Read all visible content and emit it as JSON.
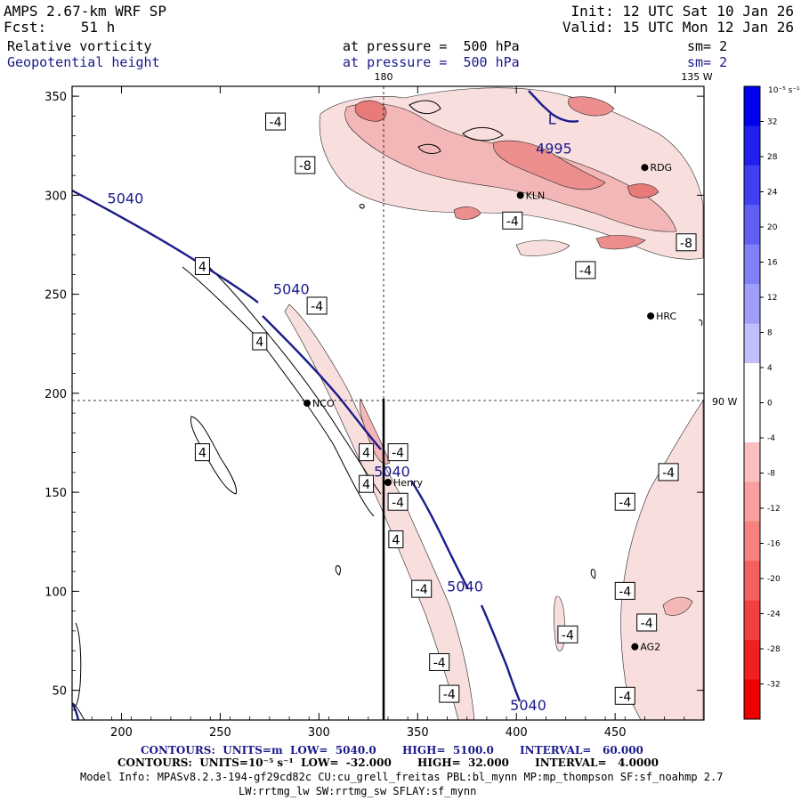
{
  "header": {
    "model": "AMPS 2.67-km WRF SP",
    "forecast": "Fcst:    51 h",
    "init": "Init: 12 UTC Sat 10 Jan 26",
    "valid": "Valid: 15 UTC Mon 12 Jan 26",
    "field1": {
      "name": "Relative vorticity",
      "pressure": "at pressure =  500 hPa",
      "smooth": "sm= 2"
    },
    "field2": {
      "name": "Geopotential height",
      "pressure": "at pressure =  500 hPa",
      "smooth": "sm= 2"
    }
  },
  "map": {
    "lon_labels": {
      "top_180": "180",
      "top_135w": "135 W",
      "right_90w": "90 W"
    },
    "stations": [
      {
        "id": "RDG",
        "x": 465,
        "y": 314
      },
      {
        "id": "KLN",
        "x": 402,
        "y": 300
      },
      {
        "id": "HRC",
        "x": 468,
        "y": 239
      },
      {
        "id": "NCO",
        "x": 294,
        "y": 195
      },
      {
        "id": "Henry",
        "x": 335,
        "y": 155
      },
      {
        "id": "AG2",
        "x": 460,
        "y": 72
      }
    ],
    "height_labels": [
      {
        "text": "5040",
        "x": 202,
        "y": 296
      },
      {
        "text": "5040",
        "x": 286,
        "y": 250
      },
      {
        "text": "5040",
        "x": 337,
        "y": 158
      },
      {
        "text": "5040",
        "x": 374,
        "y": 100
      },
      {
        "text": "5040",
        "x": 406,
        "y": 40
      },
      {
        "text": "4995",
        "x": 419,
        "y": 321
      }
    ],
    "low_marker": {
      "text": "L",
      "x": 418,
      "y": 336
    },
    "vort_labels": [
      {
        "text": "-4",
        "x": 278,
        "y": 337
      },
      {
        "text": "-8",
        "x": 293,
        "y": 315
      },
      {
        "text": "-4",
        "x": 398,
        "y": 287
      },
      {
        "text": "-8",
        "x": 486,
        "y": 276
      },
      {
        "text": "-4",
        "x": 435,
        "y": 262
      },
      {
        "text": "4",
        "x": 241,
        "y": 264
      },
      {
        "text": "-4",
        "x": 299,
        "y": 244
      },
      {
        "text": "4",
        "x": 270,
        "y": 226
      },
      {
        "text": "4",
        "x": 241,
        "y": 170
      },
      {
        "text": "4",
        "x": 324,
        "y": 170
      },
      {
        "text": "-4",
        "x": 340,
        "y": 170
      },
      {
        "text": "4",
        "x": 324,
        "y": 154
      },
      {
        "text": "-4",
        "x": 340,
        "y": 145
      },
      {
        "text": "4",
        "x": 339,
        "y": 126
      },
      {
        "text": "-4",
        "x": 352,
        "y": 101
      },
      {
        "text": "-4",
        "x": 361,
        "y": 64
      },
      {
        "text": "-4",
        "x": 366,
        "y": 48
      },
      {
        "text": "-4",
        "x": 426,
        "y": 78
      },
      {
        "text": "-4",
        "x": 455,
        "y": 100
      },
      {
        "text": "-4",
        "x": 466,
        "y": 84
      },
      {
        "text": "-4",
        "x": 455,
        "y": 47
      },
      {
        "text": "-4",
        "x": 455,
        "y": 145
      },
      {
        "text": "-4",
        "x": 477,
        "y": 160
      }
    ]
  },
  "axes": {
    "xlim": [
      175,
      495
    ],
    "ylim": [
      35,
      355
    ],
    "x_ticks": [
      "200",
      "250",
      "300",
      "350",
      "400",
      "450"
    ],
    "y_ticks": [
      "350",
      "300",
      "250",
      "200",
      "150",
      "100",
      "50"
    ]
  },
  "colorbar": {
    "unit": "10⁻⁵ s⁻¹",
    "ticks": [
      "32",
      "28",
      "24",
      "20",
      "16",
      "12",
      "8",
      "4",
      "0",
      "-4",
      "-8",
      "-12",
      "-16",
      "-20",
      "-24",
      "-28",
      "-32"
    ],
    "top_color": "#0000ee",
    "bottom_color": "#ee0000"
  },
  "footer": {
    "line1": "CONTOURS:  UNITS=m  LOW=  5040.0       HIGH=  5100.0       INTERVAL=   60.000",
    "line2": "CONTOURS:  UNITS=10⁻⁵ s⁻¹  LOW=  -32.000       HIGH=  32.000       INTERVAL=   4.0000",
    "info1": "Model Info: MPASv8.2.3-194-gf29cd82c CU:cu_grell_freitas PBL:bl_mynn MP:mp_thompson SF:sf_noahmp 2.7",
    "info2": "LW:rrtmg_lw SW:rrtmg_sw SFLAY:sf_mynn"
  }
}
